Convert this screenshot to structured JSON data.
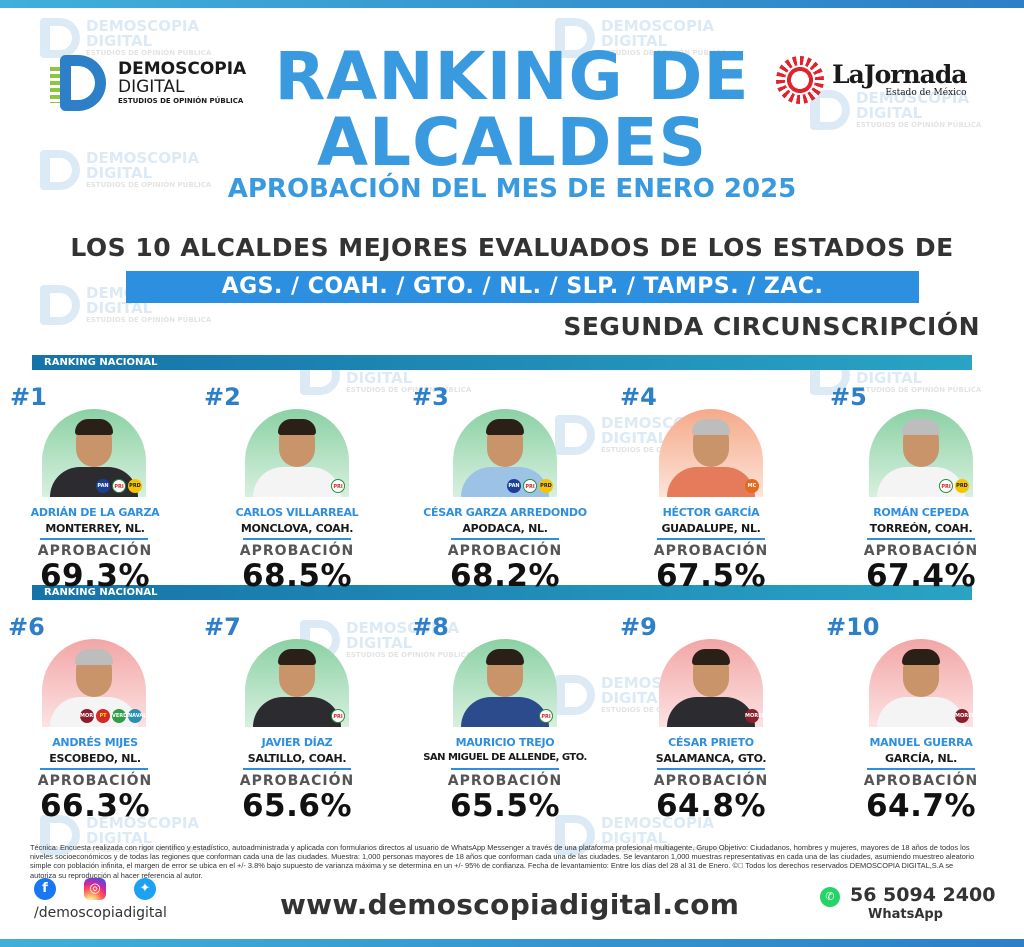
{
  "header": {
    "brand_line1": "DEMOSCOPIA",
    "brand_line2": "DIGITAL",
    "brand_tagline": "ESTUDIOS DE OPINIÓN PÚBLICA",
    "title_line1": "RANKING DE",
    "title_line2": "ALCALDES",
    "subtitle": "APROBACIÓN DEL MES DE ENERO 2025",
    "partner_name": "LaJornada",
    "partner_sub": "Estado de México",
    "headline": "LOS 10 ALCALDES MEJORES EVALUADOS DE LOS ESTADOS DE",
    "states": "AGS. / COAH. / GTO. / NL. / SLP. / TAMPS. / ZAC.",
    "circumscription": "SEGUNDA CIRCUNSCRIPCIÓN"
  },
  "section_label": "RANKING NACIONAL",
  "approval_label": "APROBACIÓN",
  "watermark": {
    "line1": "DEMOSCOPIA",
    "line2": "DIGITAL",
    "line3": "ESTUDIOS DE OPINIÓN PÚBLICA"
  },
  "mayors": [
    {
      "rank": "#1",
      "name": "ADRIÁN DE LA GARZA",
      "city": "MONTERREY, NL.",
      "approval": "69.3%",
      "parties": [
        "PAN",
        "PRI",
        "PRD"
      ]
    },
    {
      "rank": "#2",
      "name": "CARLOS VILLARREAL",
      "city": "MONCLOVA, COAH.",
      "approval": "68.5%",
      "parties": [
        "PRI"
      ]
    },
    {
      "rank": "#3",
      "name": "CÉSAR GARZA ARREDONDO",
      "city": "APODACA, NL.",
      "approval": "68.2%",
      "parties": [
        "PAN",
        "PRI",
        "PRD"
      ]
    },
    {
      "rank": "#4",
      "name": "HÉCTOR GARCÍA",
      "city": "GUADALUPE, NL.",
      "approval": "67.5%",
      "parties": [
        "MC"
      ]
    },
    {
      "rank": "#5",
      "name": "ROMÁN CEPEDA",
      "city": "TORREÓN, COAH.",
      "approval": "67.4%",
      "parties": [
        "PRI",
        "PRD"
      ]
    },
    {
      "rank": "#6",
      "name": "ANDRÉS MIJES",
      "city": "ESCOBEDO, NL.",
      "approval": "66.3%",
      "parties": [
        "MORENA",
        "PT",
        "VERDE",
        "NAVAL"
      ]
    },
    {
      "rank": "#7",
      "name": "JAVIER DÍAZ",
      "city": "SALTILLO, COAH.",
      "approval": "65.6%",
      "parties": [
        "PRI"
      ]
    },
    {
      "rank": "#8",
      "name": "MAURICIO TREJO",
      "city": "SAN MIGUEL DE ALLENDE, GTO.",
      "approval": "65.5%",
      "parties": [
        "PRI"
      ]
    },
    {
      "rank": "#9",
      "name": "CÉSAR PRIETO",
      "city": "SALAMANCA, GTO.",
      "approval": "64.8%",
      "parties": [
        "MORENA"
      ]
    },
    {
      "rank": "#10",
      "name": "MANUEL GUERRA",
      "city": "GARCÍA, NL.",
      "approval": "64.7%",
      "parties": [
        "MORENA"
      ]
    }
  ],
  "footer": {
    "note": "Técnica: Encuesta realizada con rigor científico y estadístico, autoadministrada y aplicada con formularios directos al usuario de WhatsApp Messenger a través de una plataforma profesional multiagente. Grupo Objetivo: Ciudadanos, hombres y mujeres, mayores de 18 años de todos los niveles socioeconómicos y de todas las regiones que conforman cada una de las ciudades. Muestra: 1,000 personas mayores de 18 años que conforman cada una de las ciudades. Se levantaron 1,000 muestras representativas en cada una de las ciudades, asumiendo muestreo aleatorio simple con población infinita, el margen de error se ubica en el +/- 3.8% bajo supuesto de varianza máxima y se determina en un +/- 95% de confianza. Fecha de levantamiento: Entre los días del 28 al 31 de Enero. ©⃝ Todos los derechos reservados DEMOSCOPIA DIGITAL,S.A se autoriza su reproducción al hacer referencia al autor.",
    "handle": "/demoscopiadigital",
    "website": "www.demoscopiadigital.com",
    "phone": "56 5094 2400",
    "whatsapp": "WhatsApp"
  }
}
